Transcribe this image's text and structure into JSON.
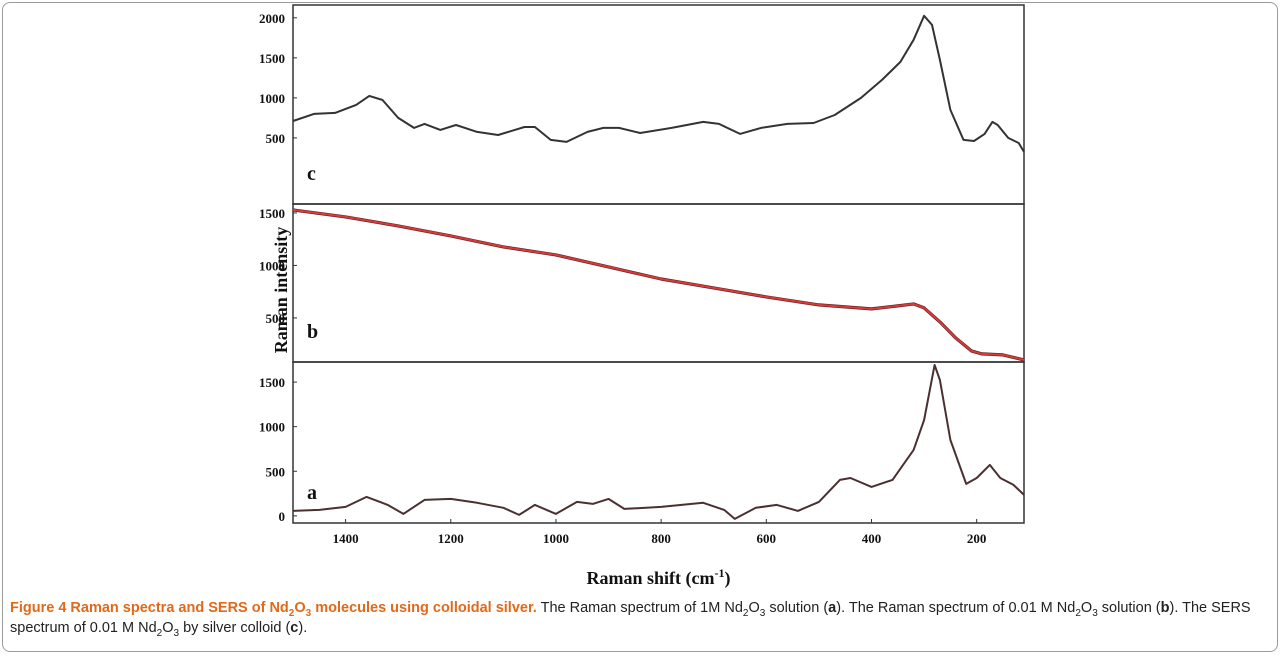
{
  "chart_data": [
    {
      "type": "line",
      "label": "c",
      "x": [
        1500,
        1460,
        1420,
        1380,
        1355,
        1330,
        1300,
        1270,
        1250,
        1220,
        1190,
        1150,
        1110,
        1060,
        1040,
        1010,
        980,
        940,
        910,
        880,
        840,
        780,
        720,
        690,
        650,
        610,
        560,
        510,
        470,
        420,
        380,
        345,
        320,
        300,
        285,
        270,
        250,
        225,
        205,
        185,
        170,
        160,
        140,
        120,
        110
      ],
      "series": [
        {
          "color": "#333333",
          "values": [
            712,
            800,
            812,
            912,
            1025,
            975,
            750,
            625,
            675,
            600,
            662,
            575,
            537,
            637,
            637,
            475,
            450,
            575,
            625,
            625,
            562,
            625,
            700,
            675,
            550,
            625,
            675,
            687,
            787,
            1000,
            1225,
            1450,
            1725,
            2025,
            1912,
            1475,
            850,
            475,
            462,
            550,
            700,
            662,
            500,
            437,
            325
          ]
        }
      ],
      "xlim": [
        1500,
        110
      ],
      "ylim": [
        -325,
        2160
      ],
      "yticks": [
        500,
        1000,
        1500,
        2000
      ]
    },
    {
      "type": "line",
      "label": "b",
      "ylabel": "Raman intensity",
      "x": [
        1500,
        1400,
        1300,
        1200,
        1100,
        1000,
        900,
        800,
        700,
        600,
        500,
        450,
        400,
        350,
        320,
        300,
        270,
        240,
        210,
        190,
        150,
        110
      ],
      "series": [
        {
          "color": "#d83a3a",
          "values": [
            1529,
            1462,
            1376,
            1281,
            1176,
            1100,
            986,
            871,
            786,
            700,
            624,
            605,
            586,
            614,
            633,
            595,
            462,
            310,
            186,
            157,
            148,
            100
          ]
        }
      ],
      "xlim": [
        1500,
        110
      ],
      "ylim": [
        80,
        1585
      ],
      "yticks": [
        500,
        1000,
        1500
      ]
    },
    {
      "type": "line",
      "label": "a",
      "x": [
        1500,
        1450,
        1400,
        1360,
        1320,
        1290,
        1250,
        1200,
        1150,
        1100,
        1070,
        1040,
        1000,
        960,
        930,
        900,
        870,
        800,
        720,
        680,
        660,
        620,
        580,
        540,
        500,
        460,
        440,
        400,
        360,
        320,
        300,
        280,
        270,
        250,
        220,
        200,
        175,
        155,
        130,
        110
      ],
      "series": [
        {
          "color": "#4a3030",
          "values": [
            56,
            67,
            100,
            213,
            123,
            22,
            179,
            190,
            146,
            90,
            11,
            123,
            22,
            157,
            134,
            190,
            78,
            100,
            146,
            67,
            -34,
            90,
            123,
            56,
            157,
            403,
            425,
            325,
            403,
            739,
            1075,
            1691,
            1523,
            851,
            358,
            425,
            571,
            425,
            347,
            235
          ]
        }
      ],
      "xlim": [
        1500,
        110
      ],
      "ylim": [
        -80,
        1725
      ],
      "yticks": [
        0,
        500,
        1000,
        1500
      ],
      "xticks": [
        1400,
        1200,
        1000,
        800,
        600,
        400,
        200
      ],
      "xlabel": [
        {
          "text": "Raman shift (cm"
        },
        {
          "text": "-1",
          "sup": true
        },
        {
          "text": ")"
        }
      ]
    }
  ],
  "caption": [
    {
      "text": "Figure 4 Raman spectra and SERS of Nd",
      "bold": true
    },
    {
      "text": "2",
      "bold": true,
      "sub": true
    },
    {
      "text": "O",
      "bold": true
    },
    {
      "text": "3",
      "bold": true,
      "sub": true
    },
    {
      "text": " molecules using colloidal silver.",
      "bold": true
    },
    {
      "text": " The Raman spectrum of 1M Nd"
    },
    {
      "text": "2",
      "sub": true
    },
    {
      "text": "O"
    },
    {
      "text": "3",
      "sub": true
    },
    {
      "text": " solution ("
    },
    {
      "text": "a",
      "bold": true
    },
    {
      "text": "). The Raman spectrum of 0.01 M Nd"
    },
    {
      "text": "2",
      "sub": true
    },
    {
      "text": "O"
    },
    {
      "text": "3",
      "sub": true
    },
    {
      "text": " solution ("
    },
    {
      "text": "b",
      "bold": true
    },
    {
      "text": "). The SERS spectrum of 0.01 M Nd"
    },
    {
      "text": "2",
      "sub": true
    },
    {
      "text": "O"
    },
    {
      "text": "3",
      "sub": true
    },
    {
      "text": " by silver colloid ("
    },
    {
      "text": "c",
      "bold": true
    },
    {
      "text": ")."
    }
  ]
}
